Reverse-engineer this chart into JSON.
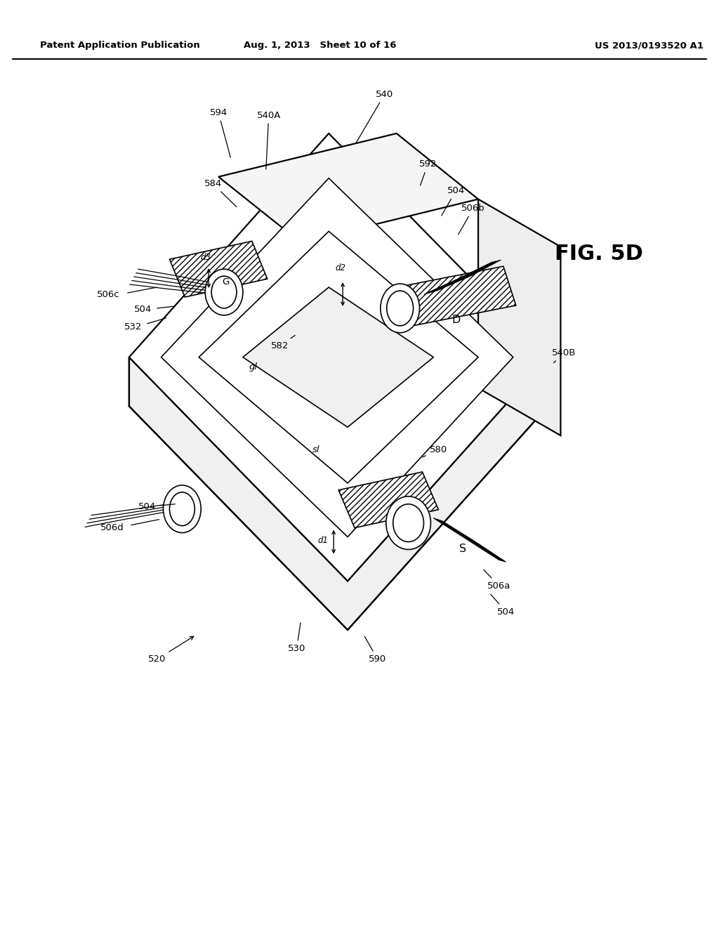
{
  "bg_color": "#ffffff",
  "line_color": "#000000",
  "header_left": "Patent Application Publication",
  "header_center": "Aug. 1, 2013   Sheet 10 of 16",
  "header_right": "US 2013/0193520 A1",
  "fig_label": "FIG. 5D",
  "fig_label_size": 22,
  "header_fontsize": 9.5,
  "label_fontsize": 9.5
}
